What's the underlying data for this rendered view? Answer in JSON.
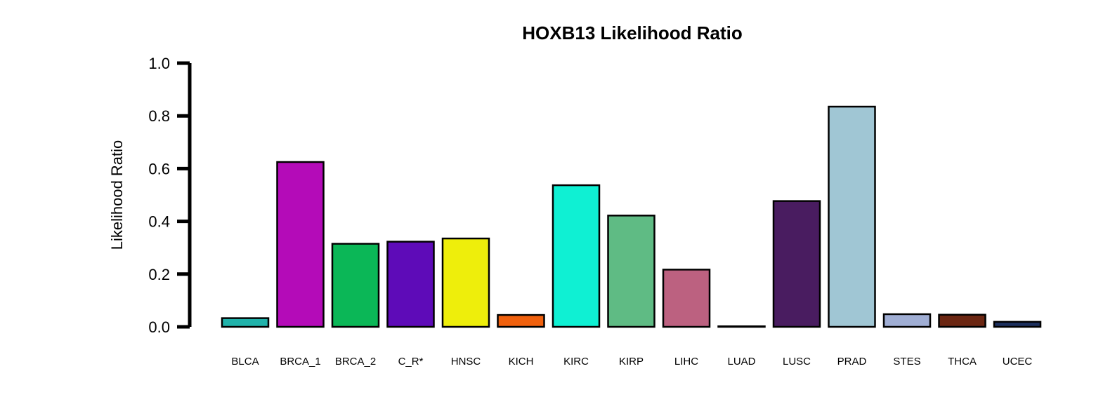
{
  "chart_data": {
    "type": "bar",
    "title": "HOXB13 Likelihood Ratio",
    "xlabel": "",
    "ylabel": "Likelihood Ratio",
    "ylim": [
      0,
      1.0
    ],
    "yticks": [
      "0.0",
      "0.2",
      "0.4",
      "0.6",
      "0.8",
      "1.0"
    ],
    "ytick_values": [
      0,
      0.2,
      0.4,
      0.6,
      0.8,
      1.0
    ],
    "grid": false,
    "categories": [
      "BLCA",
      "BRCA_1",
      "BRCA_2",
      "C_R*",
      "HNSC",
      "KICH",
      "KIRC",
      "KIRP",
      "LIHC",
      "LUAD",
      "LUSC",
      "PRAD",
      "STES",
      "THCA",
      "UCEC"
    ],
    "values": [
      0.033,
      0.625,
      0.315,
      0.323,
      0.335,
      0.045,
      0.537,
      0.422,
      0.217,
      0.002,
      0.477,
      0.835,
      0.048,
      0.046,
      0.019
    ],
    "colors": [
      "#20b2aa",
      "#b40bb8",
      "#0bb757",
      "#5e0bb8",
      "#eeee0b",
      "#f0610e",
      "#0ff0d3",
      "#5fbb84",
      "#bc6180",
      "#000000",
      "#491c60",
      "#a0c6d4",
      "#a0aed4",
      "#6b2612",
      "#1c2f5e"
    ],
    "bar_edge_color": "#000000",
    "axis_color": "#000000"
  }
}
